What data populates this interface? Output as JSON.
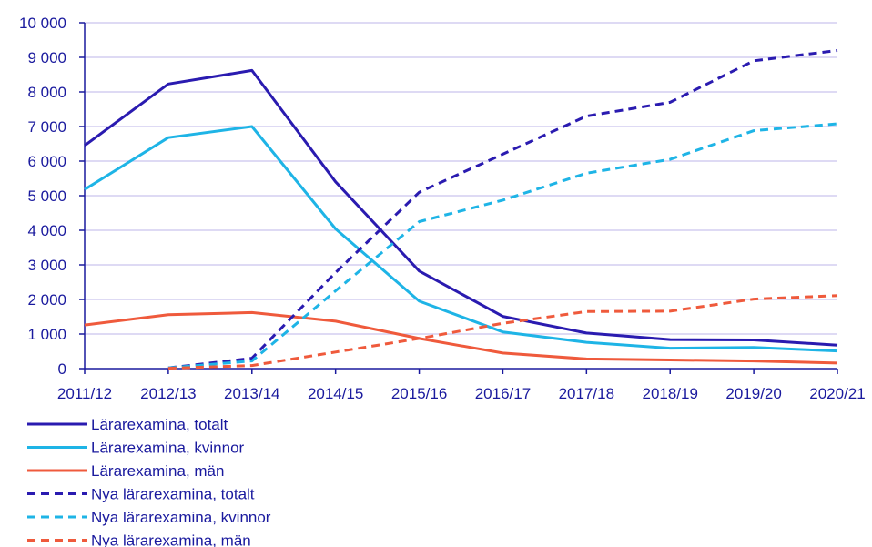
{
  "chart_data": {
    "type": "line",
    "title": "",
    "xlabel": "",
    "ylabel": "",
    "categories": [
      "2011/12",
      "2012/13",
      "2013/14",
      "2014/15",
      "2015/16",
      "2016/17",
      "2017/18",
      "2018/19",
      "2019/20",
      "2020/21"
    ],
    "y_ticks": [
      0,
      1000,
      2000,
      3000,
      4000,
      5000,
      6000,
      7000,
      8000,
      9000,
      10000
    ],
    "y_tick_labels": [
      "0",
      "1 000",
      "2 000",
      "3 000",
      "4 000",
      "5 000",
      "6 000",
      "7 000",
      "8 000",
      "9 000",
      "10 000"
    ],
    "ylim": [
      0,
      10000
    ],
    "grid": true,
    "legend_position": "bottom-left",
    "series": [
      {
        "name": "Lärarexamina, totalt",
        "color": "#2a1bb0",
        "style": "solid",
        "values": [
          6450,
          8230,
          8620,
          5400,
          2820,
          1510,
          1030,
          840,
          830,
          680
        ]
      },
      {
        "name": "Lärarexamina, kvinnor",
        "color": "#1eb4e6",
        "style": "solid",
        "values": [
          5180,
          6680,
          7000,
          4040,
          1950,
          1060,
          760,
          590,
          610,
          510
        ]
      },
      {
        "name": "Lärarexamina, män",
        "color": "#ef5a3c",
        "style": "solid",
        "values": [
          1260,
          1560,
          1620,
          1370,
          870,
          450,
          280,
          250,
          220,
          160
        ]
      },
      {
        "name": "Nya lärarexamina, totalt",
        "color": "#2a1bb0",
        "style": "dashed",
        "values": [
          null,
          20,
          300,
          2780,
          5100,
          6200,
          7300,
          7700,
          8900,
          9200
        ]
      },
      {
        "name": "Nya lärarexamina, kvinnor",
        "color": "#1eb4e6",
        "style": "dashed",
        "values": [
          null,
          20,
          220,
          2250,
          4250,
          4870,
          5650,
          6050,
          6880,
          7080
        ]
      },
      {
        "name": "Nya lärarexamina, män",
        "color": "#ef5a3c",
        "style": "dashed",
        "values": [
          null,
          10,
          90,
          480,
          870,
          1310,
          1650,
          1660,
          2010,
          2110
        ]
      }
    ]
  }
}
